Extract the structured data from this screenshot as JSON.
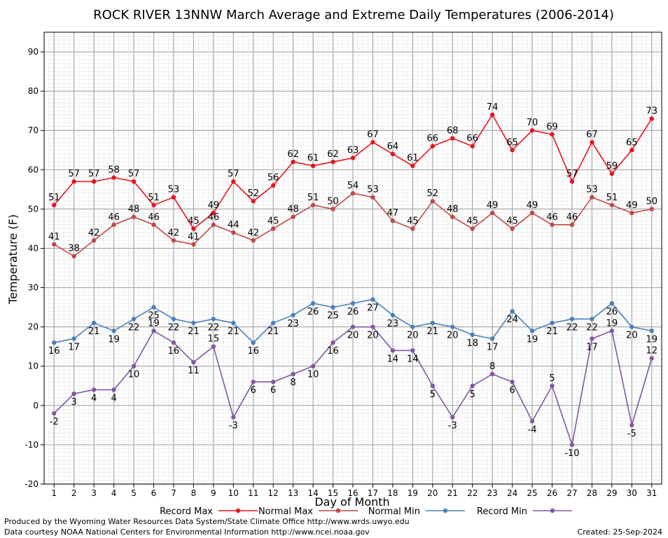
{
  "chart_data": {
    "type": "line",
    "title": "ROCK RIVER 13NNW March Average and Extreme Daily Temperatures (2006-2014)",
    "xlabel": "Day of Month",
    "ylabel": "Temperature (F)",
    "x": [
      1,
      2,
      3,
      4,
      5,
      6,
      7,
      8,
      9,
      10,
      11,
      12,
      13,
      14,
      15,
      16,
      17,
      18,
      19,
      20,
      21,
      22,
      23,
      24,
      25,
      26,
      27,
      28,
      29,
      30,
      31
    ],
    "xlim": [
      0.5,
      31.5
    ],
    "ylim": [
      -20,
      95
    ],
    "yticks": [
      -20,
      -10,
      0,
      10,
      20,
      30,
      40,
      50,
      60,
      70,
      80,
      90
    ],
    "grid": true,
    "legend_position": "bottom",
    "series": [
      {
        "name": "Record Max",
        "color": "#e8141e",
        "values": [
          51,
          57,
          57,
          58,
          57,
          51,
          53,
          45,
          49,
          57,
          52,
          56,
          62,
          61,
          62,
          63,
          67,
          64,
          61,
          66,
          68,
          66,
          74,
          65,
          70,
          69,
          57,
          67,
          59,
          65,
          73
        ]
      },
      {
        "name": "Normal Max",
        "color": "#c04848",
        "values": [
          41,
          38,
          42,
          46,
          48,
          46,
          42,
          41,
          46,
          44,
          42,
          45,
          48,
          51,
          50,
          54,
          53,
          47,
          45,
          52,
          48,
          45,
          49,
          45,
          49,
          46,
          46,
          53,
          51,
          49,
          50
        ]
      },
      {
        "name": "Normal Min",
        "color": "#4a80b8",
        "values": [
          16,
          17,
          21,
          19,
          22,
          25,
          22,
          21,
          22,
          21,
          16,
          21,
          23,
          26,
          25,
          26,
          27,
          23,
          20,
          21,
          20,
          18,
          17,
          24,
          19,
          21,
          22,
          22,
          26,
          20,
          19
        ]
      },
      {
        "name": "Record Min",
        "color": "#8058a0",
        "values": [
          -2,
          3,
          4,
          4,
          10,
          19,
          16,
          11,
          15,
          -3,
          6,
          6,
          8,
          10,
          16,
          20,
          20,
          14,
          14,
          5,
          -3,
          5,
          8,
          6,
          -4,
          5,
          -10,
          17,
          19,
          -5,
          12
        ]
      }
    ]
  },
  "footer": {
    "produced_by": "Produced by the Wyoming Water Resources Data System/State Climate Office http://www.wrds.uwyo.edu",
    "courtesy": "Data courtesy NOAA National Centers for Environmental Information http://www.ncei.noaa.gov",
    "created": "Created:  25-Sep-2024"
  }
}
